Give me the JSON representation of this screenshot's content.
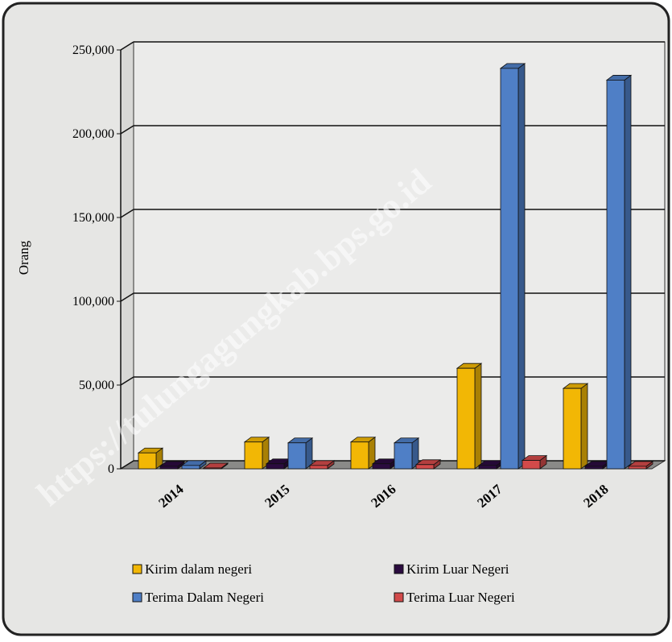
{
  "chart_data": {
    "type": "bar3d",
    "y_label": "Orang",
    "watermark": "https://tulungagungkab.bps.go.id",
    "categories": [
      "2014",
      "2015",
      "2016",
      "2017",
      "2018"
    ],
    "series": [
      {
        "name": "Kirim dalam negeri",
        "color": "#f2b705",
        "values": [
          9500,
          16000,
          16000,
          60000,
          48000
        ]
      },
      {
        "name": "Kirim Luar Negeri",
        "color": "#2b0b3f",
        "values": [
          1500,
          3000,
          3000,
          2000,
          1500
        ]
      },
      {
        "name": "Terima Dalam Negeri",
        "color": "#4f7fc6",
        "values": [
          2000,
          15500,
          15500,
          239000,
          232000
        ]
      },
      {
        "name": "Terima Luar Negeri",
        "color": "#d24a4a",
        "values": [
          500,
          2000,
          2500,
          5000,
          1500
        ]
      }
    ],
    "ylim": [
      0,
      250000
    ],
    "yticks": [
      0,
      {
        "value": 50000,
        "label": "50,000"
      },
      {
        "value": 100000,
        "label": "100,000"
      },
      {
        "value": 150000,
        "label": "150,000"
      },
      {
        "value": 200000,
        "label": "200,000"
      },
      {
        "value": 250000,
        "label": "250,000"
      }
    ],
    "grid": true,
    "legend": "bottom"
  }
}
